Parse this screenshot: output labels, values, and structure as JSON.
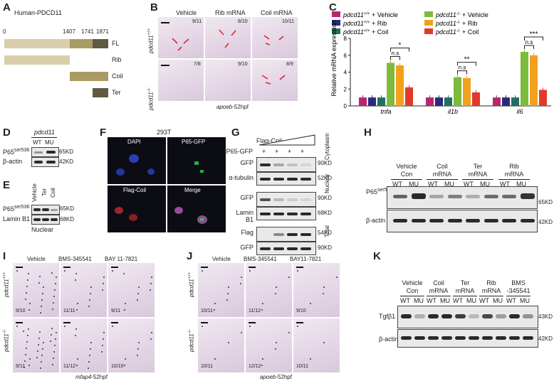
{
  "panels": {
    "A": "A",
    "B": "B",
    "C": "C",
    "D": "D",
    "E": "E",
    "F": "F",
    "G": "G",
    "H": "H",
    "I": "I",
    "J": "J",
    "K": "K"
  },
  "A": {
    "title": "Human-PDCD11",
    "ticks": [
      "0",
      "1407",
      "1741",
      "1871"
    ],
    "rows": [
      "FL",
      "Rib",
      "Coil",
      "Ter"
    ]
  },
  "B": {
    "conds": [
      "Vehicle",
      "Rib mRNA",
      "Coil mRNA"
    ],
    "wt": "pdcd11",
    "wt_sup": "+/+",
    "mu": "pdcd11",
    "mu_sup": "-/-",
    "wt_fracs": [
      "9/11",
      "8/10",
      "10/11"
    ],
    "mu_fracs": [
      "7/8",
      "9/10",
      "8/9"
    ],
    "caption": "apoeb",
    "caption_rest": "-52hpf"
  },
  "C": {
    "legend": [
      {
        "gene": "pdcd11",
        "sup": "+/+",
        "rest": " + Vehicle",
        "color": "#b4286e"
      },
      {
        "gene": "pdcd11",
        "sup": "-/-",
        "rest": " + Vehicle",
        "color": "#7cbb3c"
      },
      {
        "gene": "pdcd11",
        "sup": "+/+",
        "rest": " + Rib",
        "color": "#2a2a7a"
      },
      {
        "gene": "pdcd11",
        "sup": "-/-",
        "rest": " + Rib",
        "color": "#f2a01e"
      },
      {
        "gene": "pdcd11",
        "sup": "+/+",
        "rest": " + Coil",
        "color": "#1f6f62"
      },
      {
        "gene": "pdcd11",
        "sup": "-/-",
        "rest": " + Coil",
        "color": "#e03a2a"
      }
    ],
    "ylabel": "Relative mRNA expression",
    "yticks": [
      "0",
      "2",
      "4",
      "6",
      "8"
    ],
    "genes": [
      "tnfa",
      "il1b",
      "il6"
    ],
    "ns": "n.s",
    "sig": [
      "*",
      "**",
      "***"
    ]
  },
  "chart_data": {
    "type": "bar",
    "title": "",
    "xlabel": "",
    "ylabel": "Relative mRNA expression",
    "ylim": [
      0,
      8
    ],
    "categories": [
      "tnfa",
      "il1b",
      "il6"
    ],
    "series": [
      {
        "name": "pdcd11 +/+ + Vehicle",
        "values": [
          1.0,
          1.0,
          1.0
        ]
      },
      {
        "name": "pdcd11 +/+ + Rib",
        "values": [
          1.0,
          1.0,
          1.0
        ]
      },
      {
        "name": "pdcd11 +/+ + Coil",
        "values": [
          1.0,
          1.0,
          1.0
        ]
      },
      {
        "name": "pdcd11 -/- + Vehicle",
        "values": [
          5.1,
          3.4,
          6.4
        ]
      },
      {
        "name": "pdcd11 -/- + Rib",
        "values": [
          4.8,
          3.3,
          6.0
        ]
      },
      {
        "name": "pdcd11 -/- + Coil",
        "values": [
          2.2,
          1.6,
          1.9
        ]
      }
    ]
  },
  "D": {
    "title": "pdcd11",
    "cols": [
      "WT",
      "MU"
    ],
    "rows": [
      "P65",
      "β-actin"
    ],
    "p65_sup": "ser536",
    "kd": [
      "65KD",
      "42KD"
    ]
  },
  "E": {
    "cols": [
      "Vehicle",
      "Ter",
      "Coil"
    ],
    "rows": [
      "P65",
      "Lamin B1"
    ],
    "p65_sup": "ser536",
    "kd": [
      "65KD",
      "68KD"
    ],
    "caption": "Nuclear"
  },
  "F": {
    "title": "293T",
    "labels": [
      "DAPI",
      "P65-GFP",
      "Flag-Coil",
      "Merge"
    ]
  },
  "G": {
    "rows_top": [
      "Flag-Coil",
      "P65-GFP"
    ],
    "plus": [
      "+",
      "+",
      "+",
      "+"
    ],
    "rows": [
      "GFP",
      "α-tubulin",
      "GFP",
      "Lamin B1",
      "Flag",
      "GFP"
    ],
    "kd": [
      "90KD",
      "52KD",
      "90KD",
      "68KD",
      "54KD",
      "90KD"
    ],
    "groups": [
      "Cytoplasm",
      "Nuclear",
      "Total"
    ]
  },
  "H": {
    "groups": [
      [
        "Vehicle",
        "Con"
      ],
      [
        "Coil",
        "mRNA"
      ],
      [
        "Ter",
        "mRNA"
      ],
      [
        "Rib",
        "mRNA"
      ]
    ],
    "cols": [
      "WT",
      "MU"
    ],
    "rows": [
      "P65",
      "β-actin"
    ],
    "p65_sup": "ser536",
    "kd": [
      "65KD",
      "42KD"
    ]
  },
  "I": {
    "conds": [
      "Vehicle",
      "BMS-345541",
      "BAY 11-7821"
    ],
    "wt_fracs": [
      "9/10",
      "11/11",
      "9/11"
    ],
    "mu_fracs": [
      "9/11",
      "11/12",
      "10/10"
    ],
    "caption": "mfap4",
    "caption_rest": "-52hpf"
  },
  "J": {
    "conds": [
      "Vehicle",
      "BMS-345541",
      "BAY11-7821"
    ],
    "wt_fracs": [
      "10/11",
      "11/12",
      "9/10"
    ],
    "mu_fracs": [
      "10/11",
      "12/12",
      "10/11"
    ],
    "caption": "apoeb",
    "caption_rest": "-52hpf"
  },
  "K": {
    "groups": [
      [
        "Vehicle",
        "Con"
      ],
      [
        "Coil",
        "mRNA"
      ],
      [
        "Ter",
        "mRNA"
      ],
      [
        "Rib",
        "mRNA"
      ],
      [
        "BMS",
        "-345541"
      ]
    ],
    "cols": [
      "WT",
      "MU"
    ],
    "rows": [
      "Tgfβ1",
      "β-actin"
    ],
    "kd": [
      "43KD",
      "42KD"
    ]
  },
  "colors": {
    "fl": "#d8ceac",
    "coil": "#a99b62",
    "ter": "#5f5a40"
  }
}
